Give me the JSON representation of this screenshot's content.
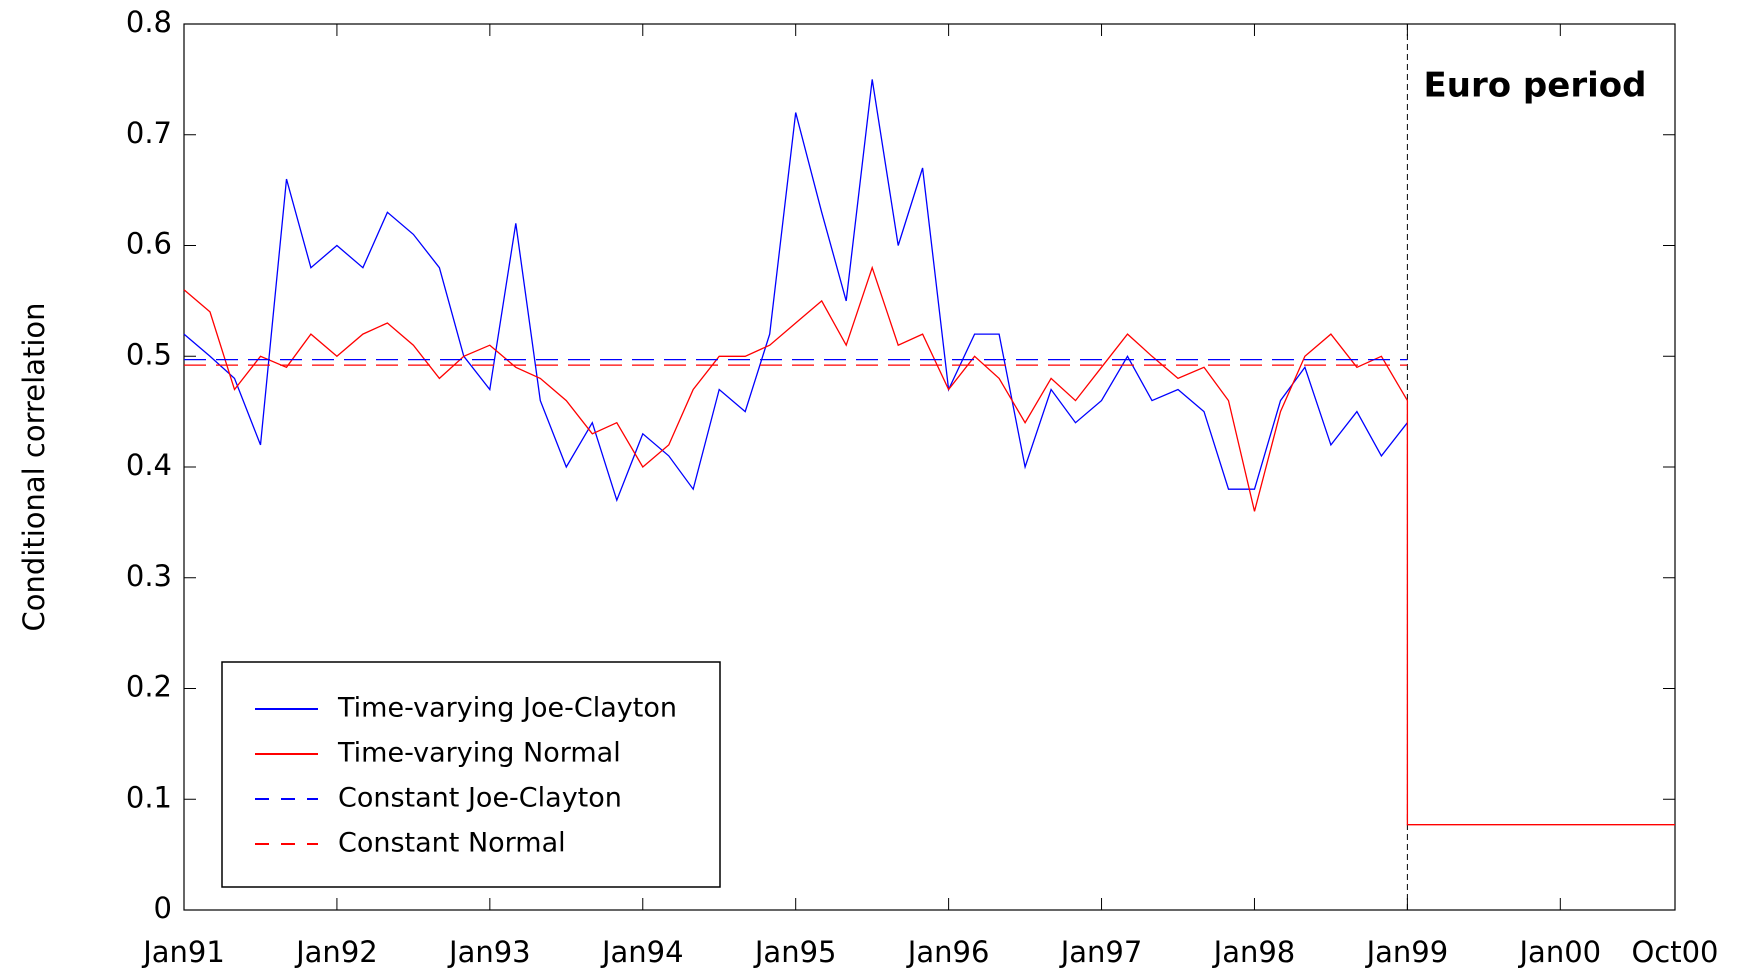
{
  "chart_data": {
    "type": "line",
    "y_label": "Conditional correlation",
    "annotation": {
      "text": "Euro period",
      "x": 1999
    },
    "xlim": [
      1991,
      2000.75
    ],
    "xticks": [
      {
        "value": 1991,
        "label": "Jan91"
      },
      {
        "value": 1992,
        "label": "Jan92"
      },
      {
        "value": 1993,
        "label": "Jan93"
      },
      {
        "value": 1994,
        "label": "Jan94"
      },
      {
        "value": 1995,
        "label": "Jan95"
      },
      {
        "value": 1996,
        "label": "Jan96"
      },
      {
        "value": 1997,
        "label": "Jan97"
      },
      {
        "value": 1998,
        "label": "Jan98"
      },
      {
        "value": 1999,
        "label": "Jan99"
      },
      {
        "value": 2000,
        "label": "Jan00"
      },
      {
        "value": 2000.75,
        "label": "Oct00"
      }
    ],
    "ylim": [
      0,
      0.8
    ],
    "yticks": [
      0,
      0.1,
      0.2,
      0.3,
      0.4,
      0.5,
      0.6,
      0.7,
      0.8
    ],
    "legend": "lower left",
    "series": [
      {
        "name": "Time-varying Joe-Clayton",
        "color": "#0000ff",
        "dashed": false,
        "x": [
          1991,
          1991.17,
          1991.33,
          1991.5,
          1991.67,
          1991.83,
          1992,
          1992.17,
          1992.33,
          1992.5,
          1992.67,
          1992.83,
          1993,
          1993.17,
          1993.33,
          1993.5,
          1993.67,
          1993.83,
          1994,
          1994.17,
          1994.33,
          1994.5,
          1994.67,
          1994.83,
          1995,
          1995.17,
          1995.33,
          1995.5,
          1995.67,
          1995.83,
          1996,
          1996.17,
          1996.33,
          1996.5,
          1996.67,
          1996.83,
          1997,
          1997.17,
          1997.33,
          1997.5,
          1997.67,
          1997.83,
          1998,
          1998.17,
          1998.33,
          1998.5,
          1998.67,
          1998.83,
          1999
        ],
        "values": [
          0.52,
          0.5,
          0.48,
          0.42,
          0.66,
          0.58,
          0.6,
          0.58,
          0.63,
          0.61,
          0.58,
          0.5,
          0.47,
          0.62,
          0.46,
          0.4,
          0.44,
          0.37,
          0.43,
          0.41,
          0.38,
          0.47,
          0.45,
          0.52,
          0.72,
          0.63,
          0.55,
          0.75,
          0.6,
          0.67,
          0.47,
          0.52,
          0.52,
          0.4,
          0.47,
          0.44,
          0.46,
          0.5,
          0.46,
          0.47,
          0.45,
          0.38,
          0.38,
          0.46,
          0.49,
          0.42,
          0.45,
          0.41,
          0.44
        ]
      },
      {
        "name": "Time-varying Normal",
        "color": "#ff0000",
        "dashed": false,
        "x": [
          1991,
          1991.17,
          1991.33,
          1991.5,
          1991.67,
          1991.83,
          1992,
          1992.17,
          1992.33,
          1992.5,
          1992.67,
          1992.83,
          1993,
          1993.17,
          1993.33,
          1993.5,
          1993.67,
          1993.83,
          1994,
          1994.17,
          1994.33,
          1994.5,
          1994.67,
          1994.83,
          1995,
          1995.17,
          1995.33,
          1995.5,
          1995.67,
          1995.83,
          1996,
          1996.17,
          1996.33,
          1996.5,
          1996.67,
          1996.83,
          1997,
          1997.17,
          1997.33,
          1997.5,
          1997.67,
          1997.83,
          1998,
          1998.17,
          1998.33,
          1998.5,
          1998.67,
          1998.83,
          1999,
          1999,
          2000.75
        ],
        "values": [
          0.56,
          0.54,
          0.47,
          0.5,
          0.49,
          0.52,
          0.5,
          0.52,
          0.53,
          0.51,
          0.48,
          0.5,
          0.51,
          0.49,
          0.48,
          0.46,
          0.43,
          0.44,
          0.4,
          0.42,
          0.47,
          0.5,
          0.5,
          0.51,
          0.53,
          0.55,
          0.51,
          0.58,
          0.51,
          0.52,
          0.47,
          0.5,
          0.48,
          0.44,
          0.48,
          0.46,
          0.49,
          0.52,
          0.5,
          0.48,
          0.49,
          0.46,
          0.36,
          0.45,
          0.5,
          0.52,
          0.49,
          0.5,
          0.46,
          0.077,
          0.077
        ]
      },
      {
        "name": "Constant Joe-Clayton",
        "color": "#0000ff",
        "dashed": true,
        "x": [
          1991,
          1999
        ],
        "values": [
          0.497,
          0.497
        ]
      },
      {
        "name": "Constant Normal",
        "color": "#ff0000",
        "dashed": true,
        "x": [
          1991,
          1999
        ],
        "values": [
          0.492,
          0.492
        ]
      }
    ]
  }
}
